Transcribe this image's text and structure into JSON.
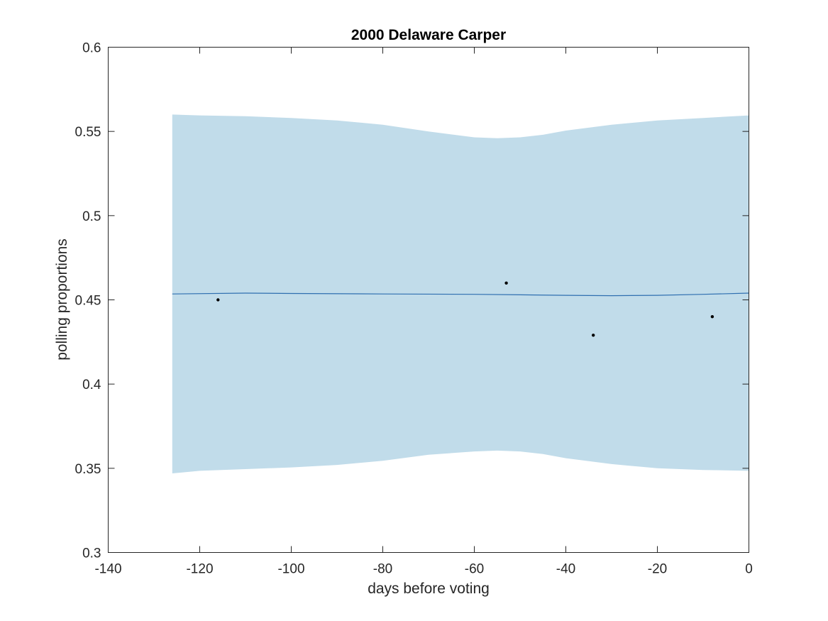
{
  "chart_data": {
    "type": "line",
    "title": "2000 Delaware Carper",
    "xlabel": "days before voting",
    "ylabel": "polling proportions",
    "xlim": [
      -140,
      0
    ],
    "ylim": [
      0.3,
      0.6
    ],
    "xticks": [
      -140,
      -120,
      -100,
      -80,
      -60,
      -40,
      -20,
      0
    ],
    "yticks": [
      0.3,
      0.35,
      0.4,
      0.45,
      0.5,
      0.55,
      0.6
    ],
    "xtick_labels": [
      "-140",
      "-120",
      "-100",
      "-80",
      "-60",
      "-40",
      "-20",
      "0"
    ],
    "ytick_labels": [
      "0.3",
      "0.35",
      "0.4",
      "0.45",
      "0.5",
      "0.55",
      "0.6"
    ],
    "grid": false,
    "legend": "none",
    "colors": {
      "band": "#c1dcea",
      "trend": "#2f6fb0",
      "points": "#000000",
      "axes": "#262626"
    },
    "series": [
      {
        "type": "area",
        "x": [
          -126,
          -120,
          -110,
          -100,
          -90,
          -80,
          -70,
          -60,
          -55,
          -50,
          -45,
          -40,
          -30,
          -20,
          -10,
          0
        ],
        "upper": [
          0.56,
          0.5595,
          0.559,
          0.558,
          0.5565,
          0.554,
          0.55,
          0.5465,
          0.546,
          0.5465,
          0.548,
          0.5505,
          0.554,
          0.5565,
          0.558,
          0.5595
        ],
        "lower": [
          0.347,
          0.3485,
          0.3495,
          0.3505,
          0.352,
          0.3545,
          0.358,
          0.36,
          0.3605,
          0.36,
          0.3585,
          0.356,
          0.3525,
          0.35,
          0.349,
          0.3485
        ]
      },
      {
        "type": "line",
        "x": [
          -126,
          -110,
          -100,
          -80,
          -60,
          -50,
          -40,
          -30,
          -20,
          -10,
          0
        ],
        "y": [
          0.4535,
          0.454,
          0.4538,
          0.4535,
          0.4533,
          0.453,
          0.4527,
          0.4525,
          0.4527,
          0.4533,
          0.454
        ]
      },
      {
        "type": "scatter",
        "x": [
          -116,
          -53,
          -34,
          -8
        ],
        "y": [
          0.45,
          0.46,
          0.429,
          0.44
        ]
      }
    ]
  }
}
